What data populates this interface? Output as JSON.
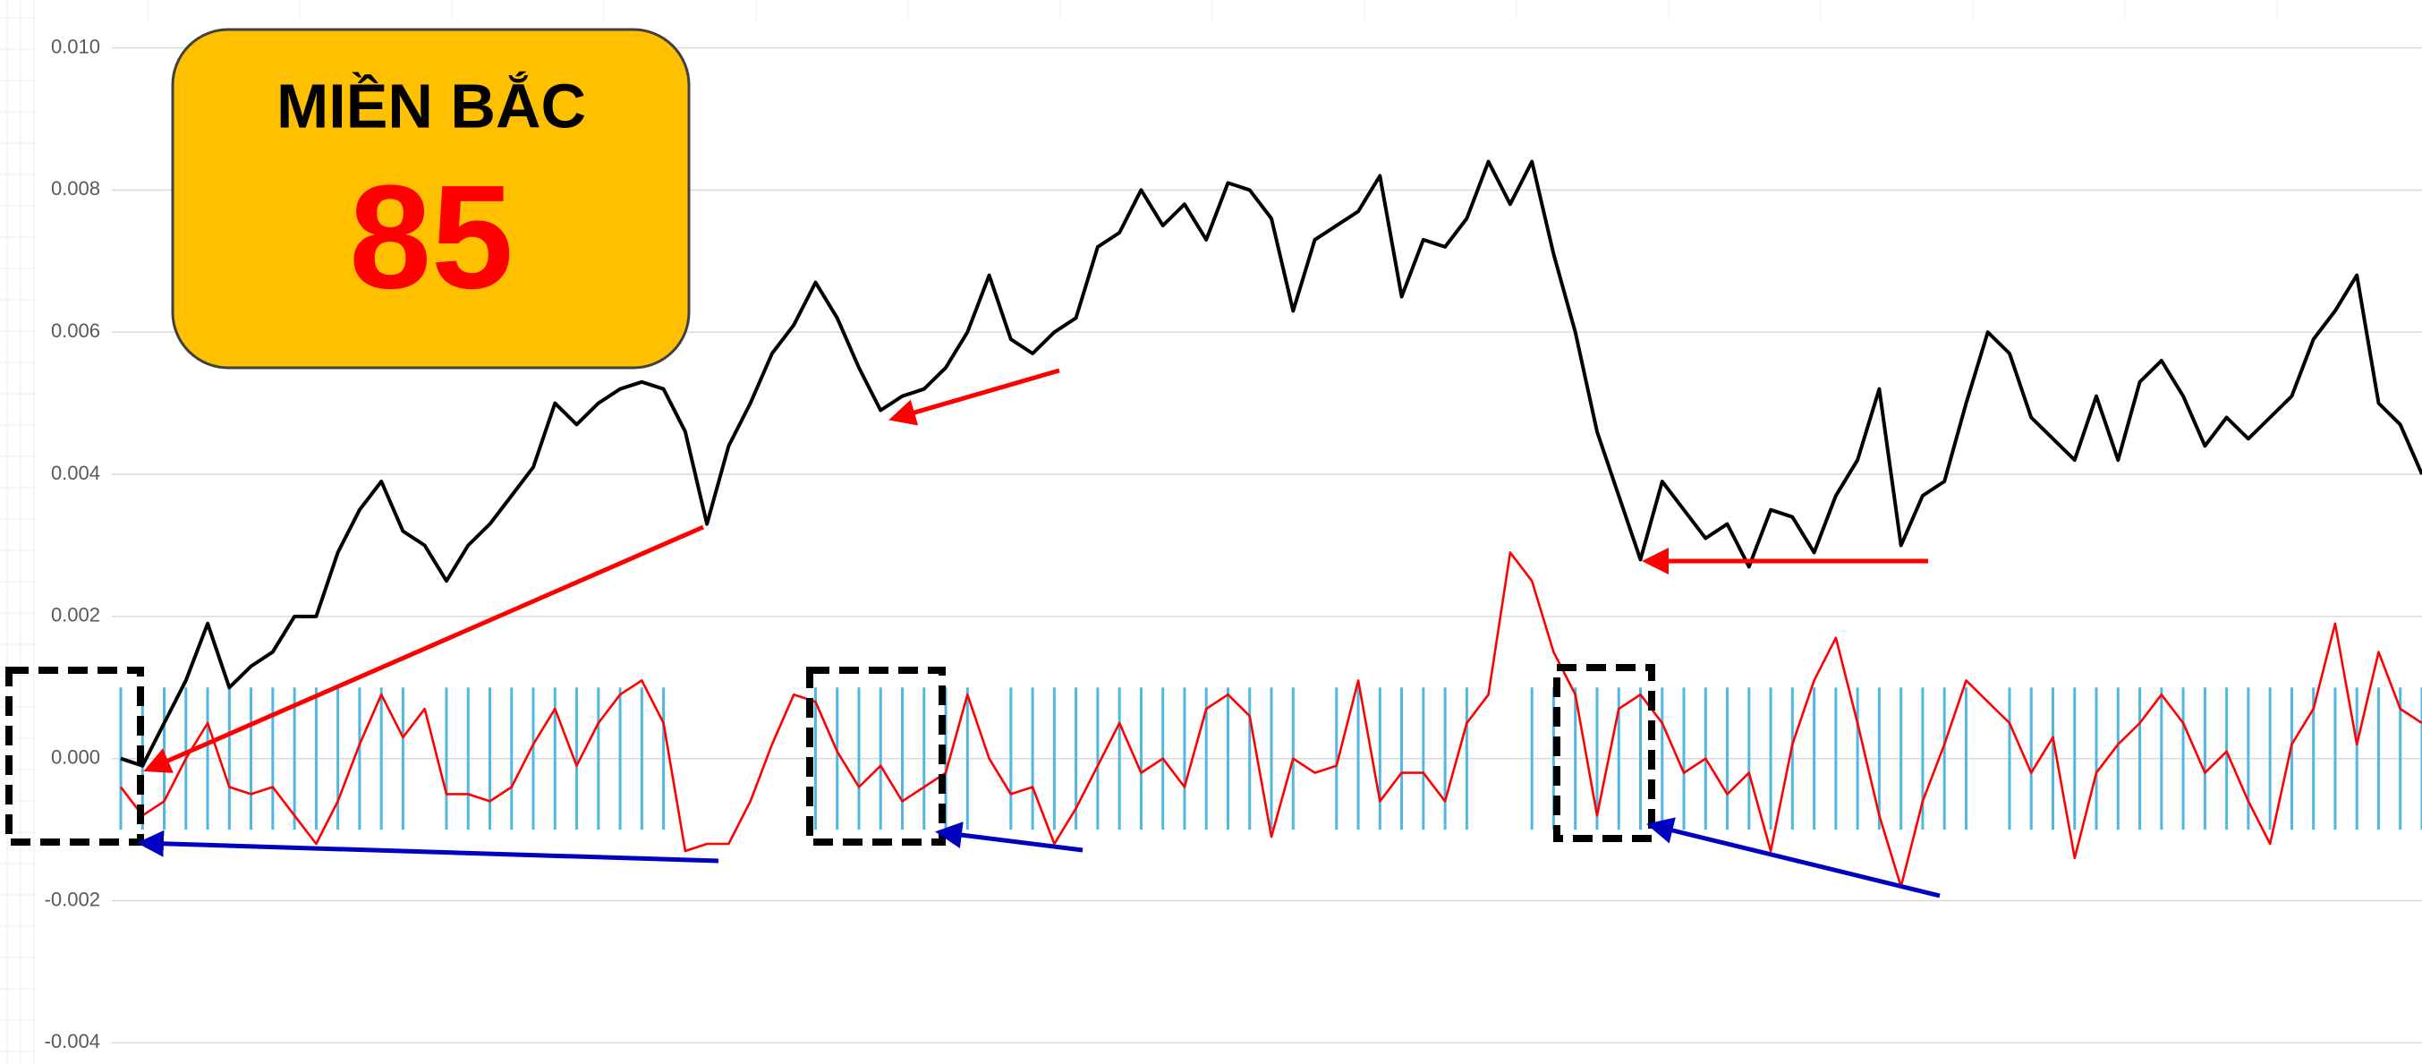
{
  "chart_data": {
    "type": "line",
    "annotations": [
      "MIỀN BẮC",
      "85"
    ],
    "ylim": [
      -0.004,
      0.01
    ],
    "yticks": [
      {
        "value": 0.01,
        "label": "0.010"
      },
      {
        "value": 0.008,
        "label": "0.008"
      },
      {
        "value": 0.006,
        "label": "0.006"
      },
      {
        "value": 0.004,
        "label": "0.004"
      },
      {
        "value": 0.002,
        "label": "0.002"
      },
      {
        "value": 0,
        "label": "0.000"
      },
      {
        "value": -0.002,
        "label": "-0.002"
      },
      {
        "value": -0.004,
        "label": "-0.004"
      }
    ],
    "grid": true,
    "series": [
      {
        "type": "bar",
        "color": "#4fb7e0",
        "values": [
          0.001,
          0.001,
          0.001,
          0.001,
          0.001,
          0.001,
          0.001,
          0.001,
          0.001,
          0.001,
          0.001,
          0.001,
          0.001,
          0.001,
          null,
          0.001,
          0.001,
          0.001,
          0.001,
          0.001,
          0.001,
          0.001,
          0.001,
          0.001,
          0.001,
          0.001,
          null,
          null,
          null,
          null,
          null,
          null,
          0.001,
          0.001,
          0.001,
          0.001,
          0.001,
          0.001,
          0.001,
          0.001,
          null,
          0.001,
          0.001,
          0.001,
          0.001,
          0.001,
          0.001,
          0.001,
          0.001,
          0.001,
          0.001,
          0.001,
          0.001,
          0.001,
          0.001,
          null,
          0.001,
          0.001,
          0.001,
          0.001,
          0.001,
          0.001,
          0.001,
          null,
          null,
          0.001,
          0.001,
          0.001,
          0.001,
          0.001,
          0.001,
          0.001,
          0.001,
          0.001,
          0.001,
          0.001,
          0.001,
          0.001,
          0.001,
          0.001,
          0.001,
          0.001,
          0.001,
          0.001,
          0.001,
          0.001,
          null,
          0.001,
          0.001,
          0.001,
          0.001,
          0.001,
          0.001,
          0.001,
          0.001,
          0.001,
          0.001,
          0.001,
          0.001,
          0.001,
          0.001,
          0.001,
          0.001,
          0.001,
          0.001,
          0.001,
          0.001
        ]
      },
      {
        "type": "bar",
        "color": "#4fb7e0",
        "values": [
          -0.001,
          -0.001,
          -0.001,
          -0.001,
          -0.001,
          -0.001,
          -0.001,
          -0.001,
          -0.001,
          -0.001,
          -0.001,
          -0.001,
          -0.001,
          -0.001,
          null,
          -0.001,
          -0.001,
          -0.001,
          -0.001,
          -0.001,
          -0.001,
          -0.001,
          -0.001,
          -0.001,
          -0.001,
          -0.001,
          null,
          null,
          null,
          null,
          null,
          null,
          -0.001,
          -0.001,
          -0.001,
          -0.001,
          -0.001,
          -0.001,
          -0.001,
          -0.001,
          null,
          -0.001,
          -0.001,
          -0.001,
          -0.001,
          -0.001,
          -0.001,
          -0.001,
          -0.001,
          -0.001,
          -0.001,
          -0.001,
          -0.001,
          -0.001,
          -0.001,
          null,
          -0.001,
          -0.001,
          -0.001,
          -0.001,
          -0.001,
          -0.001,
          -0.001,
          null,
          null,
          -0.001,
          -0.001,
          -0.001,
          -0.001,
          -0.001,
          -0.001,
          -0.001,
          -0.001,
          -0.001,
          -0.001,
          -0.001,
          -0.001,
          -0.001,
          -0.001,
          -0.001,
          -0.001,
          -0.001,
          -0.001,
          -0.001,
          -0.001,
          -0.001,
          null,
          -0.001,
          -0.001,
          -0.001,
          -0.001,
          -0.001,
          -0.001,
          -0.001,
          -0.001,
          -0.001,
          -0.001,
          -0.001,
          -0.001,
          -0.001,
          -0.001,
          -0.001,
          -0.001,
          -0.001,
          -0.001,
          -0.001,
          -0.001
        ]
      },
      {
        "type": "line",
        "color": "#ff0000",
        "values": [
          -0.0004,
          -0.0008,
          -0.0006,
          0,
          0.0005,
          -0.0004,
          -0.0005,
          -0.0004,
          -0.0008,
          -0.0012,
          -0.0006,
          0.0002,
          0.0009,
          0.0003,
          0.0007,
          -0.0005,
          -0.0005,
          -0.0006,
          -0.0004,
          0.0002,
          0.0007,
          -0.0001,
          0.0005,
          0.0009,
          0.0011,
          0.0005,
          -0.0013,
          -0.0012,
          -0.0012,
          -0.0006,
          0.0002,
          0.0009,
          0.0008,
          0.0001,
          -0.0004,
          -0.0001,
          -0.0006,
          -0.0004,
          -0.0002,
          0.0009,
          0,
          -0.0005,
          -0.0004,
          -0.0012,
          -0.0007,
          -0.0001,
          0.0005,
          -0.0002,
          0,
          -0.0004,
          0.0007,
          0.0009,
          0.0006,
          -0.0011,
          0,
          -0.0002,
          -0.0001,
          0.0011,
          -0.0006,
          -0.0002,
          -0.0002,
          -0.0006,
          0.0005,
          0.0009,
          0.0029,
          0.0025,
          0.0015,
          0.0009,
          -0.0008,
          0.0007,
          0.0009,
          0.0005,
          -0.0002,
          0,
          -0.0005,
          -0.0002,
          -0.0013,
          0.0002,
          0.0011,
          0.0017,
          0.0005,
          -0.0008,
          -0.0018,
          -0.0006,
          0.0002,
          0.0011,
          0.0008,
          0.0005,
          -0.0002,
          0.0003,
          -0.0014,
          -0.0002,
          0.0002,
          0.0005,
          0.0009,
          0.0005,
          -0.0002,
          0.0001,
          -0.0006,
          -0.0012,
          0.0002,
          0.0007,
          0.0019,
          0.0002,
          0.0015,
          0.0007,
          0.0005
        ]
      },
      {
        "type": "line",
        "color": "#000000",
        "values": [
          0,
          -0.0001,
          0.0005,
          0.0011,
          0.0019,
          0.001,
          0.0013,
          0.0015,
          0.002,
          0.002,
          0.0029,
          0.0035,
          0.0039,
          0.0032,
          0.003,
          0.0025,
          0.003,
          0.0033,
          0.0037,
          0.0041,
          0.005,
          0.0047,
          0.005,
          0.0052,
          0.0053,
          0.0052,
          0.0046,
          0.0033,
          0.0044,
          0.005,
          0.0057,
          0.0061,
          0.0067,
          0.0062,
          0.0055,
          0.0049,
          0.0051,
          0.0052,
          0.0055,
          0.006,
          0.0068,
          0.0059,
          0.0057,
          0.006,
          0.0062,
          0.0072,
          0.0074,
          0.008,
          0.0075,
          0.0078,
          0.0073,
          0.0081,
          0.008,
          0.0076,
          0.0063,
          0.0073,
          0.0075,
          0.0077,
          0.0082,
          0.0065,
          0.0073,
          0.0072,
          0.0076,
          0.0084,
          0.0078,
          0.0084,
          0.0071,
          0.006,
          0.0046,
          0.0037,
          0.0028,
          0.0039,
          0.0035,
          0.0031,
          0.0033,
          0.0027,
          0.0035,
          0.0034,
          0.0029,
          0.0037,
          0.0042,
          0.0052,
          0.003,
          0.0037,
          0.0039,
          0.005,
          0.006,
          0.0057,
          0.0048,
          0.0045,
          0.0042,
          0.0051,
          0.0042,
          0.0053,
          0.0056,
          0.0051,
          0.0044,
          0.0048,
          0.0045,
          0.0048,
          0.0051,
          0.0059,
          0.0063,
          0.0068,
          0.005,
          0.0047,
          0.004
        ]
      }
    ]
  }
}
